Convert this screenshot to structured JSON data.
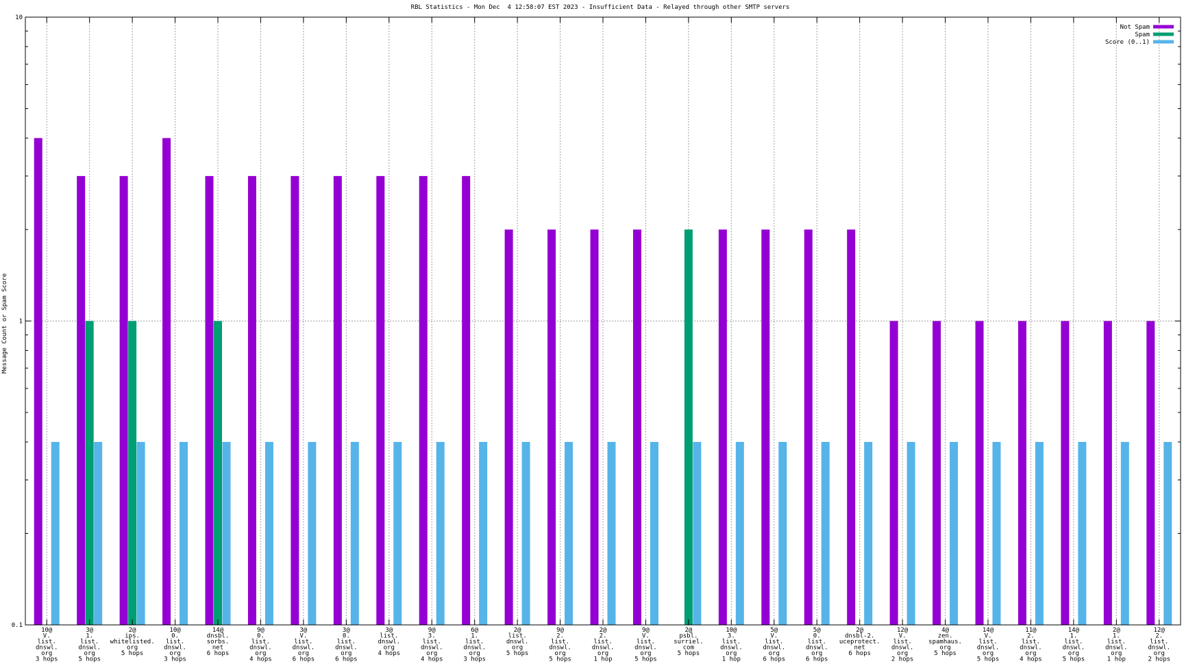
{
  "chart_data": {
    "type": "bar",
    "title": "RBL Statistics - Mon Dec  4 12:58:07 EST 2023 - Insufficient Data - Relayed through other SMTP servers",
    "ylabel": "Message Count or Spam Score",
    "xlabel": "",
    "yscale": "log",
    "ylim": [
      0.1,
      10
    ],
    "yticks": [
      "0.1",
      "1",
      "10"
    ],
    "grid": true,
    "legend_position": "top-right",
    "colors": {
      "not_spam": "#9400d3",
      "spam": "#009e73",
      "score": "#56b4e9"
    },
    "series": [
      {
        "name": "Not Spam",
        "values": [
          4,
          3,
          3,
          4,
          3,
          3,
          3,
          3,
          3,
          3,
          3,
          2,
          2,
          2,
          2,
          0.1,
          2,
          2,
          2,
          2,
          1,
          1,
          1,
          1,
          1,
          1,
          1
        ]
      },
      {
        "name": "Spam",
        "values": [
          0.1,
          1,
          1,
          0.1,
          1,
          0.1,
          0.1,
          0.1,
          0.1,
          0.1,
          0.1,
          0.1,
          0.1,
          0.1,
          0.1,
          2,
          0.1,
          0.1,
          0.1,
          0.1,
          0.1,
          0.1,
          0.1,
          0.1,
          0.1,
          0.1,
          0.1
        ]
      },
      {
        "name": "Score (0..1)",
        "values": [
          0.4,
          0.4,
          0.4,
          0.4,
          0.4,
          0.4,
          0.4,
          0.4,
          0.4,
          0.4,
          0.4,
          0.4,
          0.4,
          0.4,
          0.4,
          0.4,
          0.4,
          0.4,
          0.4,
          0.4,
          0.4,
          0.4,
          0.4,
          0.4,
          0.4,
          0.4,
          0.4
        ]
      }
    ],
    "categories": [
      [
        "10@",
        "V.",
        "list.",
        "dnswl.",
        "org",
        "3 hops"
      ],
      [
        "3@",
        "1.",
        "list.",
        "dnswl.",
        "org",
        "5 hops"
      ],
      [
        "2@",
        "ips.",
        "whitelisted.",
        "org",
        "5 hops"
      ],
      [
        "10@",
        "0.",
        "list.",
        "dnswl.",
        "org",
        "3 hops"
      ],
      [
        "14@",
        "dnsbl.",
        "sorbs.",
        "net",
        "6 hops"
      ],
      [
        "9@",
        "0.",
        "list.",
        "dnswl.",
        "org",
        "4 hops"
      ],
      [
        "3@",
        "V.",
        "list.",
        "dnswl.",
        "org",
        "6 hops"
      ],
      [
        "3@",
        "0.",
        "list.",
        "dnswl.",
        "org",
        "6 hops"
      ],
      [
        "3@",
        "list.",
        "dnswl.",
        "org",
        "4 hops"
      ],
      [
        "9@",
        "3.",
        "list.",
        "dnswl.",
        "org",
        "4 hops"
      ],
      [
        "6@",
        "1.",
        "list.",
        "dnswl.",
        "org",
        "3 hops"
      ],
      [
        "2@",
        "list.",
        "dnswl.",
        "org",
        "5 hops"
      ],
      [
        "9@",
        "2.",
        "list.",
        "dnswl.",
        "org",
        "5 hops"
      ],
      [
        "2@",
        "2.",
        "list.",
        "dnswl.",
        "org",
        "1 hop"
      ],
      [
        "9@",
        "V.",
        "list.",
        "dnswl.",
        "org",
        "5 hops"
      ],
      [
        "2@",
        "psbl.",
        "surriel.",
        "com",
        "5 hops"
      ],
      [
        "10@",
        "3.",
        "list.",
        "dnswl.",
        "org",
        "1 hop"
      ],
      [
        "5@",
        "V.",
        "list.",
        "dnswl.",
        "org",
        "6 hops"
      ],
      [
        "5@",
        "0.",
        "list.",
        "dnswl.",
        "org",
        "6 hops"
      ],
      [
        "2@",
        "dnsbl-2.",
        "uceprotect.",
        "net",
        "6 hops"
      ],
      [
        "12@",
        "V.",
        "list.",
        "dnswl.",
        "org",
        "2 hops"
      ],
      [
        "4@",
        "zen.",
        "spamhaus.",
        "org",
        "5 hops"
      ],
      [
        "14@",
        "V.",
        "list.",
        "dnswl.",
        "org",
        "5 hops"
      ],
      [
        "11@",
        "2.",
        "list.",
        "dnswl.",
        "org",
        "4 hops"
      ],
      [
        "14@",
        "1.",
        "list.",
        "dnswl.",
        "org",
        "5 hops"
      ],
      [
        "2@",
        "1.",
        "list.",
        "dnswl.",
        "org",
        "1 hop"
      ],
      [
        "12@",
        "2.",
        "list.",
        "dnswl.",
        "org",
        "2 hops"
      ]
    ]
  }
}
